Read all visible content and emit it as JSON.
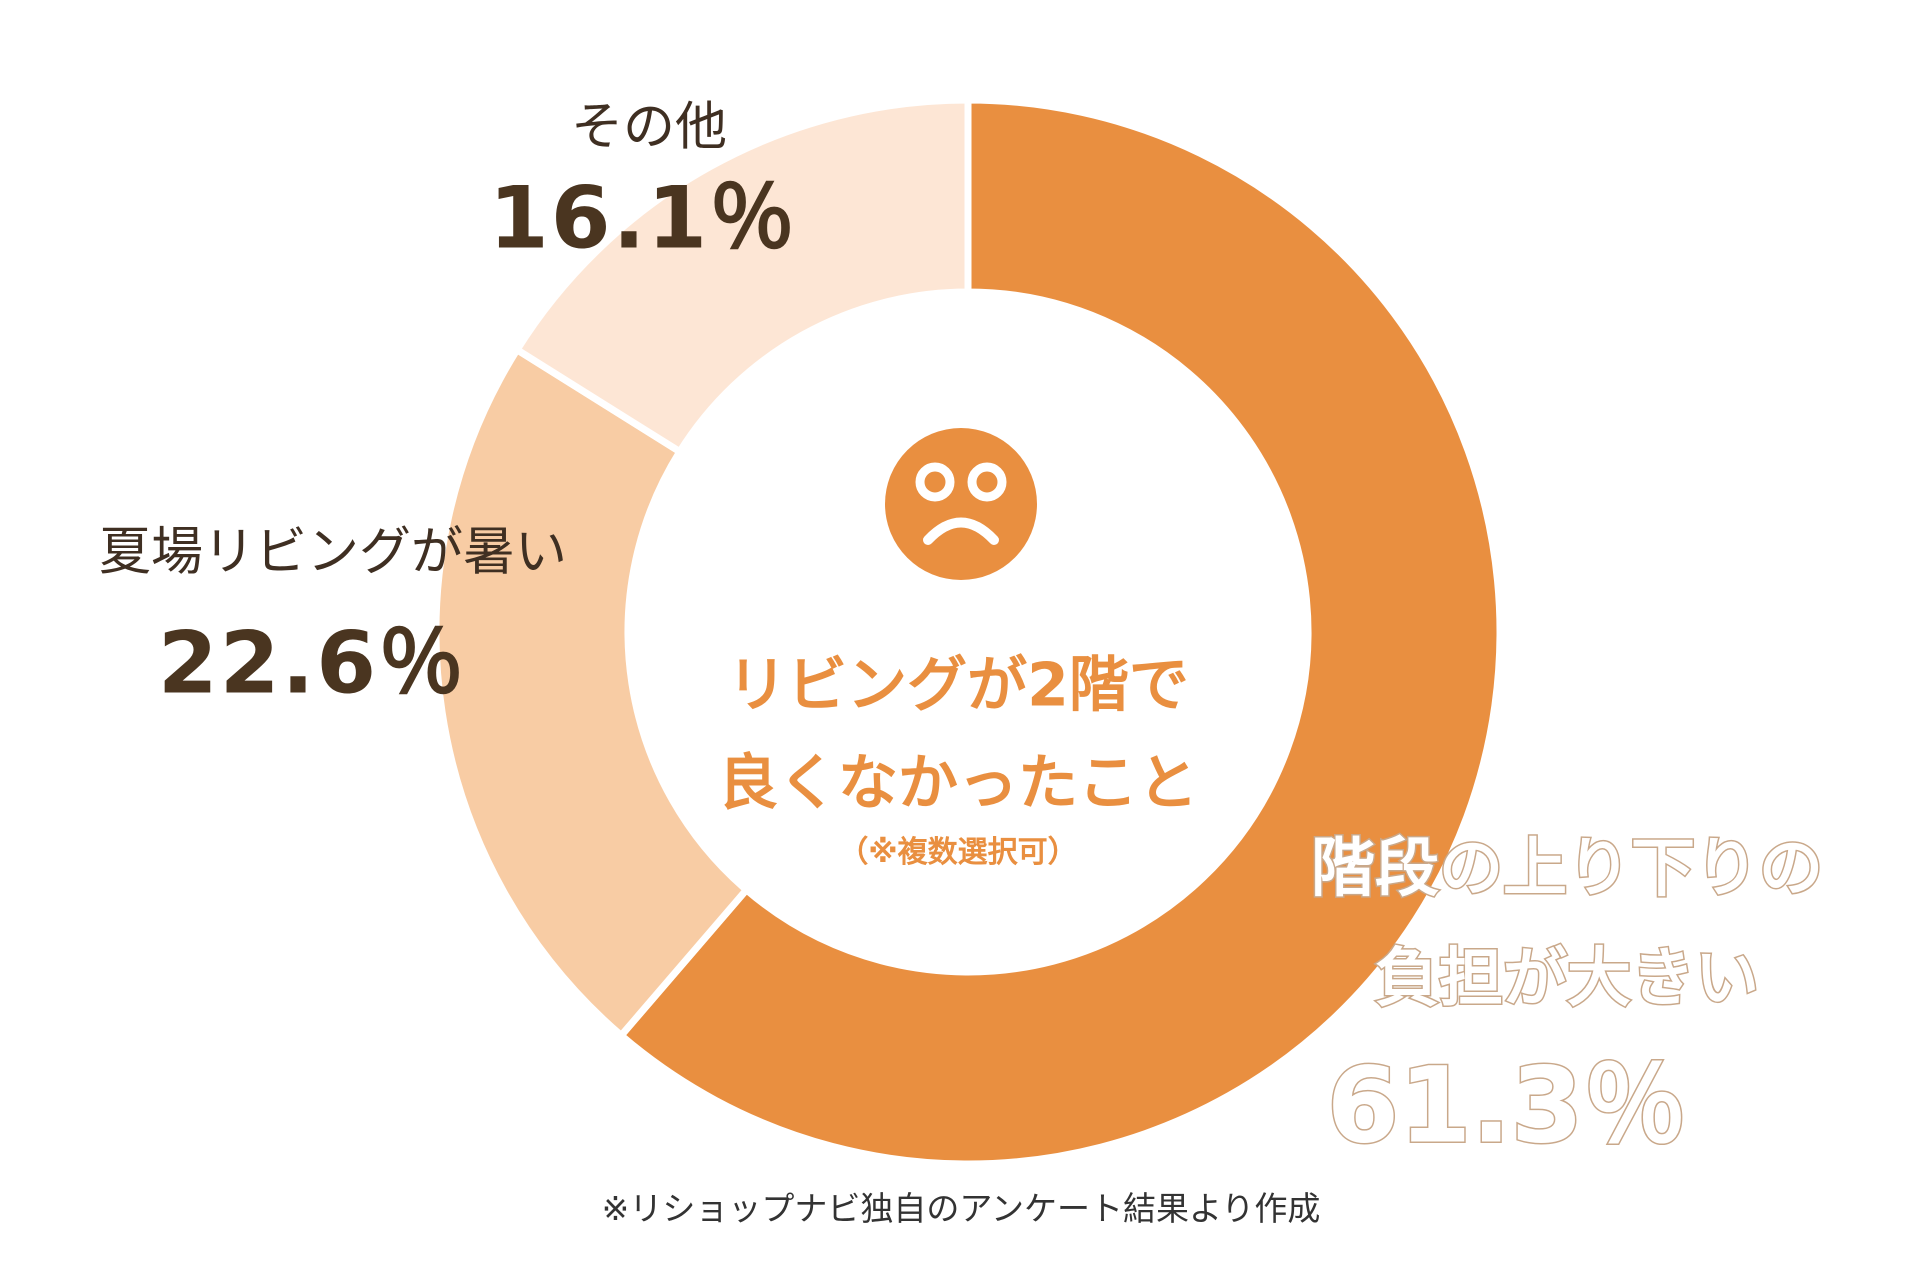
{
  "chart_data": {
    "type": "pie",
    "donut": true,
    "title": "リビングが2階で良くなかったこと",
    "title_lines": [
      "リビングが2階で",
      "良くなかったこと"
    ],
    "subtitle": "（※複数選択可）",
    "start": "top",
    "direction": "clockwise",
    "slices": [
      {
        "label_lines": [
          "階段の上り下りの",
          "負担が大きい"
        ],
        "label": "階段の上り下りの負担が大きい",
        "value": 61.3,
        "display": "61.3％",
        "color": "#e98f40"
      },
      {
        "label_lines": [
          "夏場リビングが暑い"
        ],
        "label": "夏場リビングが暑い",
        "value": 22.6,
        "display": "22.6％",
        "color": "#f8cca4"
      },
      {
        "label_lines": [
          "その他"
        ],
        "label": "その他",
        "value": 16.1,
        "display": "16.1％",
        "color": "#fde6d5"
      }
    ],
    "footnote": "※リショップナビ独自のアンケート結果より作成",
    "center_icon": "sad-face-icon",
    "legend": "none"
  }
}
